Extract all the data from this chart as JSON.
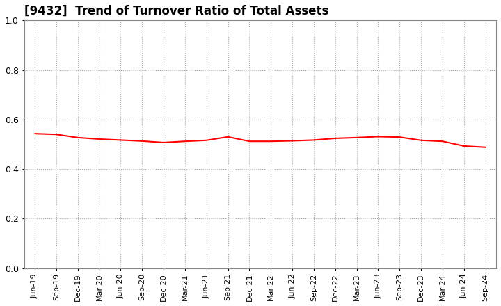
{
  "title": "[9432]  Trend of Turnover Ratio of Total Assets",
  "line_color": "#FF0000",
  "line_width": 1.5,
  "background_color": "#FFFFFF",
  "grid_color": "#AAAAAA",
  "ylim": [
    0.0,
    1.0
  ],
  "yticks": [
    0.0,
    0.2,
    0.4,
    0.6,
    0.8,
    1.0
  ],
  "x_labels": [
    "Jun-19",
    "Sep-19",
    "Dec-19",
    "Mar-20",
    "Jun-20",
    "Sep-20",
    "Dec-20",
    "Mar-21",
    "Jun-21",
    "Sep-21",
    "Dec-21",
    "Mar-22",
    "Jun-22",
    "Sep-22",
    "Dec-22",
    "Mar-23",
    "Jun-23",
    "Sep-23",
    "Dec-23",
    "Mar-24",
    "Jun-24",
    "Sep-24"
  ],
  "values": [
    0.543,
    0.54,
    0.527,
    0.521,
    0.517,
    0.513,
    0.507,
    0.512,
    0.516,
    0.53,
    0.512,
    0.512,
    0.514,
    0.517,
    0.524,
    0.527,
    0.531,
    0.529,
    0.516,
    0.512,
    0.493,
    0.488
  ],
  "title_fontsize": 12,
  "tick_fontsize": 8,
  "ytick_fontsize": 9
}
